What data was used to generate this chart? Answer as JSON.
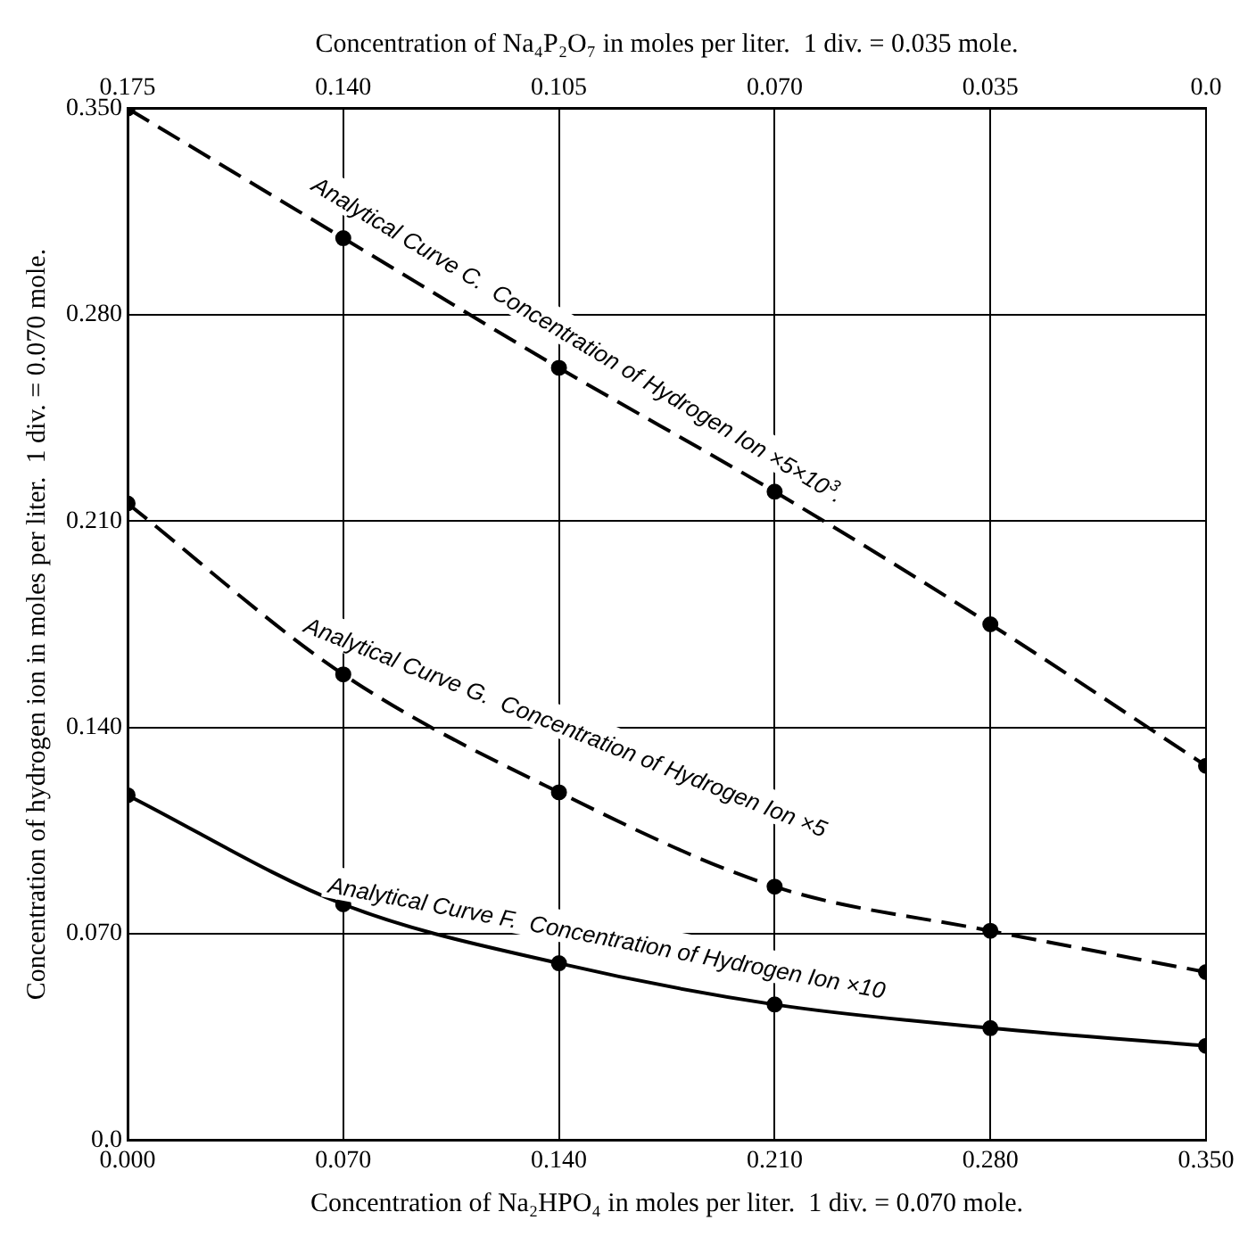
{
  "chart_data": {
    "type": "line",
    "xlabel": "Concentration of Na₂HPO₄ in moles per liter.  1 div. = 0.070 mole.",
    "x2label": "Concentration of Na₄P₂O₇ in moles per liter.  1 div. = 0.035 mole.",
    "ylabel": "Concentration of hydrogen ion in moles per liter.  1 div. = 0.070 mole.",
    "x": [
      0,
      0.07,
      0.14,
      0.21,
      0.28,
      0.35
    ],
    "series": [
      {
        "name": "Analytical Curve C.  Concentration of Hydrogen Ion ×5×10$^{3}$.",
        "color": "#000000",
        "values": [
          0.35,
          0.306,
          0.262,
          0.22,
          0.175,
          0.127
        ],
        "line_style": "dashed",
        "marker": "circle"
      },
      {
        "name": "Analytical Curve G.  Concentration of Hydrogen Ion ×5",
        "color": "#000000",
        "values": [
          0.216,
          0.158,
          0.118,
          0.086,
          0.071,
          0.057
        ],
        "line_style": "dashed",
        "marker": "circle"
      },
      {
        "name": "Analytical Curve F.  Concentration of Hydrogen Ion ×10",
        "color": "#000000",
        "values": [
          0.117,
          0.08,
          0.06,
          0.046,
          0.038,
          0.032
        ],
        "line_style": "solid",
        "marker": "circle"
      }
    ],
    "xlim": [
      0,
      0.35
    ],
    "xticks": [
      {
        "value": 0,
        "label": "0.000"
      },
      {
        "value": 0.07,
        "label": "0.070"
      },
      {
        "value": 0.14,
        "label": "0.140"
      },
      {
        "value": 0.21,
        "label": "0.210"
      },
      {
        "value": 0.28,
        "label": "0.280"
      },
      {
        "value": 0.35,
        "label": "0.350"
      }
    ],
    "x2lim": [
      0.175,
      0
    ],
    "x2ticks": [
      0.175,
      {
        "value": 0.14,
        "label": "0.140"
      },
      0.105,
      {
        "value": 0.07,
        "label": "0.070"
      },
      0.035,
      {
        "value": 0,
        "label": "0.0"
      }
    ],
    "ylim": [
      0,
      0.35
    ],
    "yticks": [
      {
        "value": 0,
        "label": "0.0"
      },
      {
        "value": 0.07,
        "label": "0.070"
      },
      {
        "value": 0.14,
        "label": "0.140"
      },
      {
        "value": 0.21,
        "label": "0.210"
      },
      {
        "value": 0.28,
        "label": "0.280"
      },
      {
        "value": 0.35,
        "label": "0.350"
      }
    ],
    "grid": true,
    "legend": false
  }
}
